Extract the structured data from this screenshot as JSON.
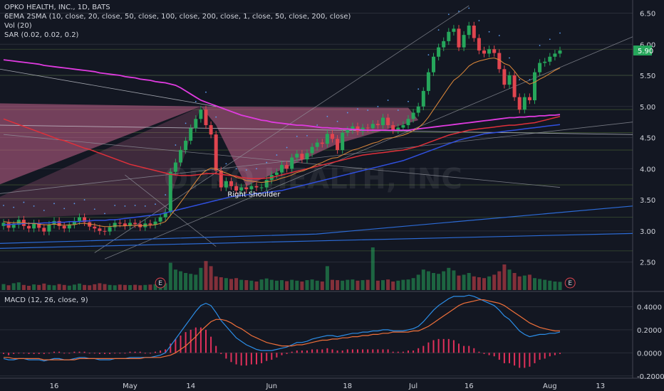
{
  "header": {
    "title_line": "OPKO HEALTH, INC., 1D, BATS",
    "studies": [
      "6EMA 2SMA (10, close, 20, close, 50, close, 100, close, 200, close, 1, close, 50, close, 200, close)",
      "Vol (20)",
      "SAR (0.02, 0.02, 0.2)"
    ]
  },
  "macd_header": "MACD (12, 26, close, 9)",
  "watermark": "OPKO HEALTH, INC",
  "colors": {
    "background": "#131722",
    "up": "#26a65b",
    "down": "#e0454f",
    "pink_pattern": "#c2638a",
    "macd_line": "#2c8ee8",
    "signal_line": "#f0703a",
    "hist": "#e0305a",
    "price_tag": "#26a65b"
  },
  "chart_data": [
    {
      "type": "candlestick",
      "title": "OPKO HEALTH, INC., 1D, BATS",
      "y_ticks": [
        6.5,
        6.0,
        5.5,
        5.0,
        4.5,
        4.0,
        3.5,
        3.0,
        2.5
      ],
      "y_tick_labels": [
        "6.50",
        "6.00",
        "5.50",
        "5.00",
        "4.50",
        "4.00",
        "3.50",
        "3.00",
        "2.50"
      ],
      "ylim": [
        2.05,
        6.62
      ],
      "last_price": 5.9,
      "last_price_label": "5.90",
      "x_labels": [
        "16",
        "May",
        "14",
        "Jun",
        "18",
        "Jul",
        "16",
        "Aug",
        "13"
      ],
      "annotations": [
        "Right Shoulder",
        "E",
        "E"
      ],
      "close": [
        3.13,
        3.05,
        3.1,
        3.18,
        3.08,
        3.04,
        3.12,
        3.05,
        2.99,
        3.1,
        3.16,
        3.08,
        3.04,
        3.1,
        3.16,
        3.22,
        3.14,
        3.07,
        3.04,
        3.0,
        2.99,
        3.06,
        3.13,
        3.12,
        3.08,
        3.13,
        3.11,
        3.06,
        3.12,
        3.1,
        3.15,
        3.22,
        3.3,
        3.95,
        4.1,
        4.3,
        4.45,
        4.65,
        4.8,
        4.95,
        4.7,
        4.55,
        3.97,
        3.7,
        3.8,
        3.72,
        3.65,
        3.7,
        3.67,
        3.72,
        3.7,
        3.7,
        3.82,
        3.9,
        3.94,
        4.06,
        4.0,
        4.18,
        4.24,
        4.15,
        4.25,
        4.35,
        4.42,
        4.4,
        4.56,
        4.48,
        4.3,
        4.58,
        4.62,
        4.68,
        4.6,
        4.66,
        4.65,
        4.72,
        4.7,
        4.82,
        4.7,
        4.62,
        4.66,
        4.7,
        4.8,
        4.9,
        5.0,
        5.25,
        5.55,
        5.8,
        5.95,
        6.05,
        6.2,
        6.25,
        5.95,
        6.15,
        6.3,
        6.1,
        5.9,
        5.85,
        5.92,
        5.86,
        5.6,
        5.35,
        5.5,
        5.15,
        4.95,
        5.15,
        5.1,
        5.55,
        5.7,
        5.72,
        5.8,
        5.85,
        5.9
      ],
      "sma_pink": [
        5.75,
        5.74,
        5.73,
        5.72,
        5.71,
        5.7,
        5.69,
        5.68,
        5.66,
        5.65,
        5.64,
        5.63,
        5.62,
        5.61,
        5.6,
        5.59,
        5.58,
        5.57,
        5.56,
        5.54,
        5.53,
        5.52,
        5.51,
        5.5,
        5.48,
        5.47,
        5.46,
        5.44,
        5.43,
        5.42,
        5.4,
        5.39,
        5.38,
        5.36,
        5.34,
        5.3,
        5.25,
        5.2,
        5.15,
        5.1,
        5.07,
        5.04,
        5.01,
        4.98,
        4.95,
        4.92,
        4.89,
        4.86,
        4.84,
        4.82,
        4.8,
        4.78,
        4.77,
        4.75,
        4.74,
        4.73,
        4.72,
        4.71,
        4.7,
        4.7,
        4.69,
        4.68,
        4.67,
        4.66,
        4.66,
        4.65,
        4.65,
        4.64,
        4.64,
        4.63,
        4.63,
        4.62,
        4.62,
        4.62,
        4.62,
        4.62,
        4.62,
        4.62,
        4.62,
        4.62,
        4.62,
        4.63,
        4.64,
        4.65,
        4.66,
        4.67,
        4.68,
        4.69,
        4.7,
        4.71,
        4.72,
        4.73,
        4.74,
        4.75,
        4.76,
        4.77,
        4.78,
        4.79,
        4.8,
        4.81,
        4.82,
        4.82,
        4.83,
        4.83,
        4.84,
        4.84,
        4.85,
        4.85,
        4.86,
        4.86,
        4.87
      ],
      "ema_red": [
        4.8,
        4.77,
        4.74,
        4.71,
        4.68,
        4.65,
        4.62,
        4.59,
        4.56,
        4.53,
        4.5,
        4.47,
        4.45,
        4.42,
        4.39,
        4.36,
        4.33,
        4.31,
        4.28,
        4.25,
        4.22,
        4.19,
        4.16,
        4.13,
        4.1,
        4.07,
        4.05,
        4.03,
        4.01,
        3.99,
        3.97,
        3.95,
        3.93,
        3.91,
        3.9,
        3.89,
        3.89,
        3.89,
        3.9,
        3.91,
        3.92,
        3.92,
        3.92,
        3.91,
        3.9,
        3.89,
        3.88,
        3.86,
        3.85,
        3.84,
        3.84,
        3.84,
        3.85,
        3.86,
        3.88,
        3.9,
        3.92,
        3.94,
        3.96,
        3.98,
        4.0,
        4.02,
        4.04,
        4.06,
        4.08,
        4.1,
        4.12,
        4.14,
        4.16,
        4.18,
        4.2,
        4.22,
        4.23,
        4.24,
        4.25,
        4.26,
        4.27,
        4.28,
        4.29,
        4.3,
        4.32,
        4.34,
        4.36,
        4.39,
        4.42,
        4.45,
        4.48,
        4.51,
        4.54,
        4.56,
        4.58,
        4.6,
        4.62,
        4.63,
        4.64,
        4.65,
        4.66,
        4.67,
        4.68,
        4.69,
        4.7,
        4.7,
        4.71,
        4.72,
        4.73,
        4.74,
        4.76,
        4.78,
        4.8,
        4.82,
        4.84
      ],
      "sma_blue": [
        3.1,
        3.1,
        3.11,
        3.11,
        3.12,
        3.12,
        3.12,
        3.12,
        3.13,
        3.13,
        3.14,
        3.14,
        3.14,
        3.15,
        3.15,
        3.15,
        3.16,
        3.16,
        3.17,
        3.17,
        3.17,
        3.18,
        3.18,
        3.19,
        3.2,
        3.21,
        3.22,
        3.23,
        3.24,
        3.25,
        3.26,
        3.27,
        3.29,
        3.31,
        3.33,
        3.35,
        3.37,
        3.39,
        3.41,
        3.43,
        3.45,
        3.47,
        3.49,
        3.51,
        3.53,
        3.55,
        3.56,
        3.57,
        3.58,
        3.59,
        3.6,
        3.61,
        3.62,
        3.63,
        3.64,
        3.65,
        3.67,
        3.69,
        3.71,
        3.73,
        3.75,
        3.77,
        3.79,
        3.81,
        3.83,
        3.85,
        3.87,
        3.89,
        3.91,
        3.93,
        3.95,
        3.97,
        3.99,
        4.01,
        4.03,
        4.05,
        4.07,
        4.09,
        4.11,
        4.13,
        4.16,
        4.19,
        4.22,
        4.25,
        4.28,
        4.31,
        4.34,
        4.37,
        4.4,
        4.43,
        4.46,
        4.48,
        4.5,
        4.52,
        4.54,
        4.56,
        4.57,
        4.58,
        4.59,
        4.6,
        4.61,
        4.62,
        4.63,
        4.64,
        4.65,
        4.66,
        4.67,
        4.68,
        4.69,
        4.7,
        4.71
      ],
      "ema_orange": [
        3.15,
        3.14,
        3.13,
        3.14,
        3.13,
        3.12,
        3.12,
        3.11,
        3.1,
        3.1,
        3.11,
        3.1,
        3.09,
        3.1,
        3.1,
        3.12,
        3.12,
        3.11,
        3.1,
        3.08,
        3.07,
        3.07,
        3.08,
        3.08,
        3.08,
        3.09,
        3.09,
        3.08,
        3.09,
        3.09,
        3.1,
        3.12,
        3.15,
        3.25,
        3.35,
        3.46,
        3.57,
        3.68,
        3.79,
        3.9,
        3.97,
        4.01,
        4.0,
        3.96,
        3.93,
        3.9,
        3.86,
        3.84,
        3.81,
        3.8,
        3.79,
        3.78,
        3.79,
        3.8,
        3.82,
        3.85,
        3.87,
        3.9,
        3.94,
        3.96,
        3.99,
        4.03,
        4.07,
        4.1,
        4.14,
        4.17,
        4.18,
        4.22,
        4.26,
        4.3,
        4.32,
        4.35,
        4.38,
        4.41,
        4.43,
        4.47,
        4.49,
        4.5,
        4.52,
        4.54,
        4.57,
        4.61,
        4.66,
        4.73,
        4.83,
        4.95,
        5.07,
        5.19,
        5.31,
        5.42,
        5.48,
        5.56,
        5.65,
        5.7,
        5.73,
        5.75,
        5.77,
        5.78,
        5.75,
        5.69,
        5.66,
        5.57,
        5.46,
        5.41,
        5.36,
        5.39,
        5.44,
        5.48,
        5.53,
        5.58,
        5.62
      ],
      "volume": [
        35,
        28,
        40,
        45,
        30,
        25,
        33,
        30,
        38,
        30,
        28,
        35,
        30,
        26,
        32,
        38,
        30,
        28,
        34,
        40,
        35,
        30,
        28,
        32,
        30,
        29,
        31,
        28,
        30,
        32,
        34,
        38,
        40,
        160,
        120,
        110,
        100,
        95,
        90,
        130,
        170,
        140,
        80,
        75,
        70,
        65,
        70,
        60,
        58,
        55,
        50,
        62,
        68,
        60,
        55,
        58,
        52,
        60,
        55,
        50,
        58,
        62,
        55,
        50,
        140,
        60,
        58,
        55,
        60,
        62,
        55,
        58,
        60,
        250,
        55,
        58,
        62,
        50,
        55,
        60,
        62,
        70,
        90,
        120,
        110,
        100,
        95,
        110,
        130,
        115,
        85,
        90,
        100,
        80,
        75,
        70,
        80,
        90,
        110,
        150,
        120,
        100,
        80,
        85,
        90,
        70,
        65,
        60,
        55,
        50,
        48
      ]
    },
    {
      "type": "line",
      "title": "MACD (12, 26, close, 9)",
      "y_ticks": [
        0.4,
        0.2,
        0.0,
        -0.2
      ],
      "y_tick_labels": [
        "0.4000",
        "0.2000",
        "0.0000",
        "-0.2000"
      ],
      "ylim": [
        -0.22,
        0.52
      ],
      "series": [
        {
          "role": "macd",
          "values": [
            -0.05,
            -0.06,
            -0.06,
            -0.05,
            -0.05,
            -0.06,
            -0.06,
            -0.06,
            -0.07,
            -0.06,
            -0.05,
            -0.05,
            -0.06,
            -0.06,
            -0.05,
            -0.04,
            -0.04,
            -0.05,
            -0.05,
            -0.06,
            -0.06,
            -0.06,
            -0.05,
            -0.05,
            -0.05,
            -0.04,
            -0.04,
            -0.04,
            -0.04,
            -0.04,
            -0.03,
            -0.02,
            0.0,
            0.06,
            0.12,
            0.18,
            0.24,
            0.3,
            0.36,
            0.41,
            0.43,
            0.41,
            0.35,
            0.28,
            0.23,
            0.18,
            0.13,
            0.1,
            0.07,
            0.05,
            0.03,
            0.02,
            0.02,
            0.02,
            0.03,
            0.04,
            0.05,
            0.07,
            0.09,
            0.09,
            0.1,
            0.12,
            0.13,
            0.14,
            0.15,
            0.15,
            0.14,
            0.15,
            0.16,
            0.17,
            0.17,
            0.18,
            0.18,
            0.19,
            0.19,
            0.2,
            0.2,
            0.19,
            0.19,
            0.19,
            0.2,
            0.21,
            0.23,
            0.27,
            0.32,
            0.37,
            0.41,
            0.44,
            0.47,
            0.49,
            0.49,
            0.49,
            0.5,
            0.49,
            0.47,
            0.45,
            0.43,
            0.41,
            0.37,
            0.32,
            0.29,
            0.24,
            0.19,
            0.16,
            0.14,
            0.15,
            0.16,
            0.16,
            0.17,
            0.17,
            0.18
          ]
        },
        {
          "role": "signal",
          "values": [
            -0.04,
            -0.04,
            -0.05,
            -0.05,
            -0.05,
            -0.05,
            -0.05,
            -0.05,
            -0.06,
            -0.06,
            -0.06,
            -0.06,
            -0.06,
            -0.06,
            -0.06,
            -0.05,
            -0.05,
            -0.05,
            -0.05,
            -0.05,
            -0.05,
            -0.05,
            -0.05,
            -0.05,
            -0.05,
            -0.05,
            -0.05,
            -0.05,
            -0.04,
            -0.04,
            -0.04,
            -0.04,
            -0.03,
            -0.02,
            0.0,
            0.03,
            0.06,
            0.1,
            0.14,
            0.19,
            0.23,
            0.27,
            0.29,
            0.29,
            0.28,
            0.26,
            0.23,
            0.21,
            0.18,
            0.15,
            0.13,
            0.11,
            0.09,
            0.08,
            0.07,
            0.06,
            0.06,
            0.06,
            0.07,
            0.07,
            0.08,
            0.09,
            0.1,
            0.11,
            0.11,
            0.12,
            0.12,
            0.13,
            0.13,
            0.14,
            0.14,
            0.15,
            0.15,
            0.16,
            0.16,
            0.17,
            0.17,
            0.18,
            0.18,
            0.18,
            0.18,
            0.19,
            0.19,
            0.21,
            0.23,
            0.26,
            0.29,
            0.32,
            0.35,
            0.38,
            0.41,
            0.43,
            0.44,
            0.45,
            0.46,
            0.46,
            0.45,
            0.44,
            0.43,
            0.41,
            0.38,
            0.35,
            0.32,
            0.29,
            0.26,
            0.24,
            0.22,
            0.21,
            0.2,
            0.19,
            0.19
          ]
        }
      ]
    }
  ]
}
